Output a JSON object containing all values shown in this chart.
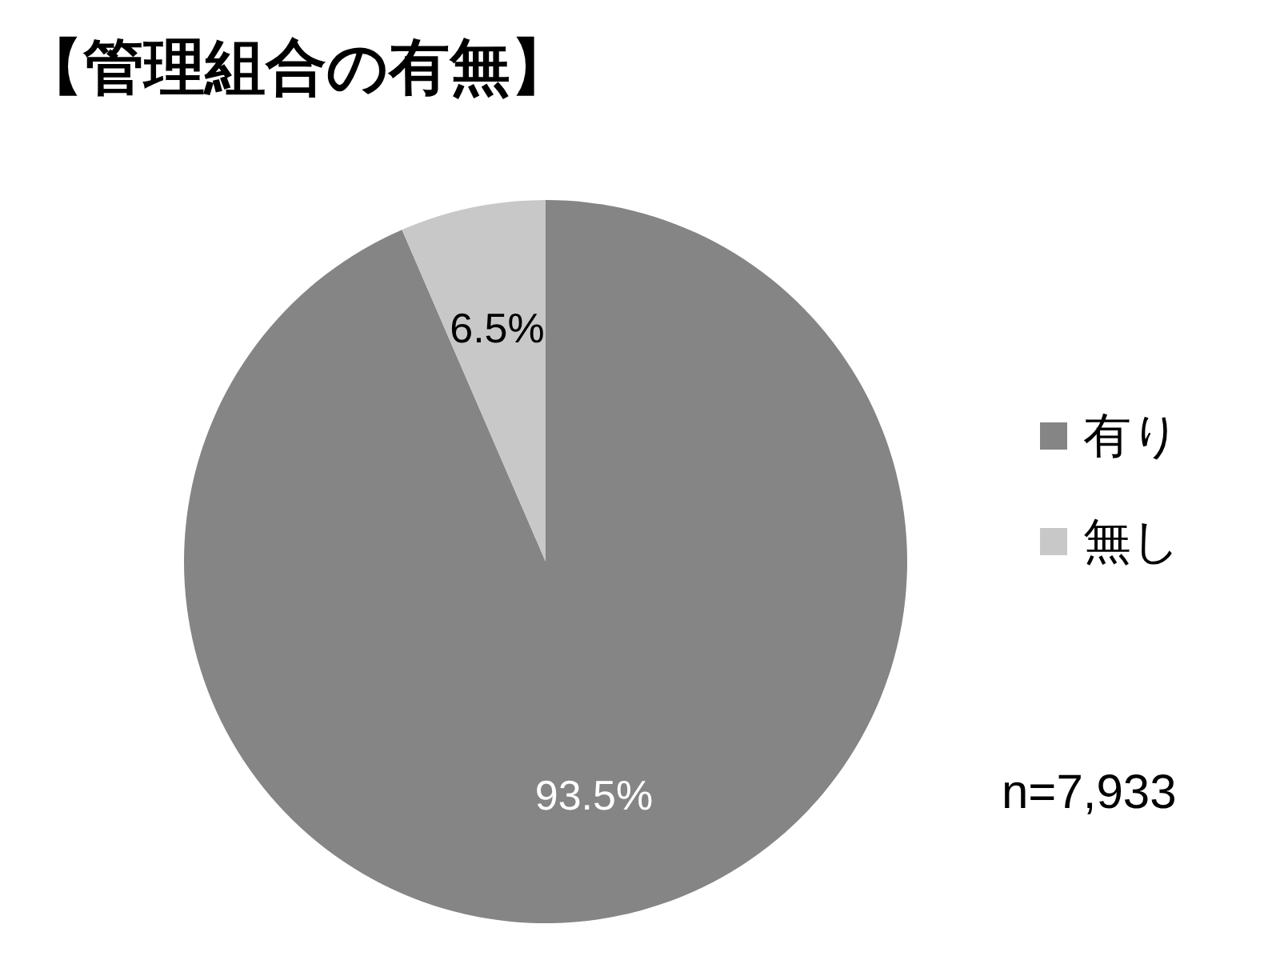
{
  "chart_data": {
    "type": "pie",
    "title": "【管理組合の有無】",
    "categories": [
      "有り",
      "無し"
    ],
    "values": [
      93.5,
      6.5
    ],
    "colors": [
      "#858585",
      "#c8c8c8"
    ],
    "value_labels": [
      "93.5%",
      "6.5%"
    ],
    "legend": "right",
    "annotations": [
      "n=7,933"
    ]
  }
}
